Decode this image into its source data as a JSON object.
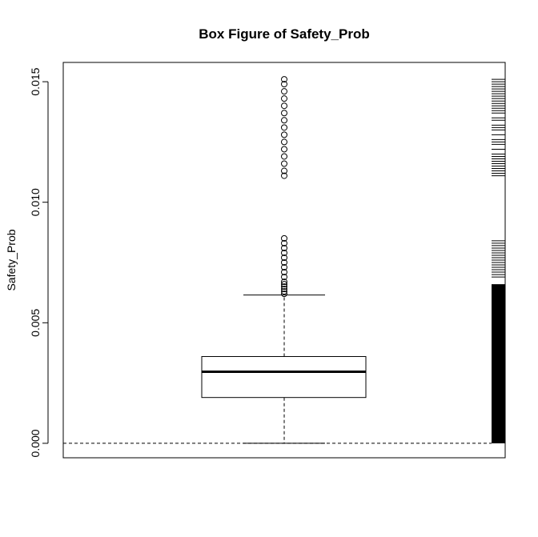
{
  "chart_data": {
    "type": "boxplot",
    "title": "Box Figure of Safety_Prob",
    "xlabel": "",
    "ylabel": "Safety_Prob",
    "ylim": [
      -0.0006,
      0.0158
    ],
    "yticks": [
      0.0,
      0.005,
      0.01,
      0.015
    ],
    "ytick_labels": [
      "0.000",
      "0.005",
      "0.010",
      "0.015"
    ],
    "grid": false,
    "reference_line_y": 0.0,
    "box": {
      "whisker_low": 0.0,
      "q1": 0.0019,
      "median": 0.00297,
      "q3": 0.0036,
      "whisker_high": 0.00615
    },
    "outliers": [
      0.0062,
      0.0063,
      0.0064,
      0.0065,
      0.0066,
      0.0067,
      0.0069,
      0.0071,
      0.0073,
      0.0075,
      0.0077,
      0.0079,
      0.0081,
      0.0083,
      0.0085,
      0.0111,
      0.0113,
      0.0116,
      0.0119,
      0.0122,
      0.0125,
      0.0128,
      0.0131,
      0.0134,
      0.0137,
      0.014,
      0.0143,
      0.0146,
      0.0149,
      0.0151
    ],
    "rug": {
      "solid_ranges": [
        [
          0.0,
          0.0066
        ]
      ],
      "ticks": [
        0.0069,
        0.007,
        0.0071,
        0.0072,
        0.0073,
        0.0074,
        0.0075,
        0.0076,
        0.0077,
        0.0078,
        0.0079,
        0.008,
        0.0081,
        0.0082,
        0.0083,
        0.0084,
        0.0111,
        0.0112,
        0.0113,
        0.0114,
        0.0115,
        0.0116,
        0.0117,
        0.0118,
        0.0119,
        0.012,
        0.0122,
        0.0124,
        0.0125,
        0.0126,
        0.0128,
        0.013,
        0.0131,
        0.0132,
        0.0134,
        0.0135,
        0.0137,
        0.0138,
        0.0139,
        0.014,
        0.0141,
        0.0142,
        0.0143,
        0.0144,
        0.0145,
        0.0146,
        0.0147,
        0.0148,
        0.0149,
        0.015,
        0.0151
      ]
    }
  }
}
